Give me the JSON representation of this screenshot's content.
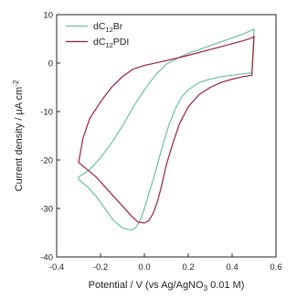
{
  "chart_data": {
    "type": "line",
    "xlabel": {
      "text": "Potential / V (vs Ag/AgNO",
      "sub": "3",
      "tail": " 0.01 M)"
    },
    "ylabel": {
      "text": "Current density / μA cm",
      "sup": "-2"
    },
    "xlim": [
      -0.4,
      0.6
    ],
    "ylim": [
      -40,
      10
    ],
    "x_ticks": [
      -0.4,
      -0.2,
      0.0,
      0.2,
      0.4,
      0.6
    ],
    "x_tick_labels": [
      "-0.4",
      "-0.2",
      "0.0",
      "0.2",
      "0.4",
      "0.6"
    ],
    "y_ticks": [
      -40,
      -30,
      -20,
      -10,
      0,
      10
    ],
    "y_tick_labels": [
      "-40",
      "-30",
      "-20",
      "-10",
      "0",
      "10"
    ],
    "grid": false,
    "legend_position": "top-left",
    "series": [
      {
        "name": {
          "pre": "dC",
          "sub": "12",
          "post": "Br"
        },
        "color": "#6dbfa6",
        "x": [
          -0.3,
          -0.26,
          -0.22,
          -0.18,
          -0.14,
          -0.1,
          -0.06,
          -0.04,
          -0.02,
          0.0,
          0.02,
          0.05,
          0.08,
          0.11,
          0.14,
          0.17,
          0.2,
          0.25,
          0.3,
          0.35,
          0.4,
          0.45,
          0.49,
          0.5,
          0.49,
          0.45,
          0.4,
          0.3,
          0.25,
          0.2,
          0.15,
          0.1,
          0.05,
          0.0,
          -0.05,
          -0.1,
          -0.15,
          -0.2,
          -0.25,
          -0.3,
          -0.3
        ],
        "y": [
          -24,
          -25.5,
          -27.5,
          -30,
          -32.5,
          -34,
          -34.5,
          -34,
          -32.5,
          -30,
          -27,
          -22.5,
          -17.5,
          -13,
          -9.5,
          -7,
          -5.5,
          -4,
          -3.3,
          -2.8,
          -2.5,
          -2.2,
          -2,
          7,
          6.8,
          6,
          5.2,
          3.6,
          2.8,
          2,
          1,
          -0.2,
          -2.5,
          -5.5,
          -9,
          -13,
          -16.5,
          -19.5,
          -22,
          -23.5,
          -24
        ]
      },
      {
        "name": {
          "pre": "dC",
          "sub": "12",
          "post": "PDI"
        },
        "color": "#9c1f3c",
        "x": [
          -0.3,
          -0.26,
          -0.22,
          -0.18,
          -0.14,
          -0.1,
          -0.06,
          -0.03,
          0.0,
          0.02,
          0.04,
          0.06,
          0.08,
          0.1,
          0.13,
          0.16,
          0.2,
          0.25,
          0.3,
          0.35,
          0.4,
          0.45,
          0.49,
          0.5,
          0.49,
          0.45,
          0.4,
          0.3,
          0.2,
          0.1,
          0.0,
          -0.05,
          -0.1,
          -0.15,
          -0.2,
          -0.25,
          -0.28,
          -0.3
        ],
        "y": [
          -20.5,
          -22,
          -23.5,
          -25.5,
          -27.5,
          -29.5,
          -31.5,
          -32.8,
          -33,
          -32.5,
          -31,
          -28.5,
          -25,
          -21,
          -16.5,
          -12.5,
          -9,
          -6.5,
          -5,
          -4,
          -3.3,
          -2.8,
          -2.5,
          5.5,
          5.2,
          4.6,
          4,
          2.8,
          1.6,
          0.5,
          -0.5,
          -1.2,
          -2.8,
          -5,
          -8,
          -11.5,
          -15.5,
          -20.5
        ]
      }
    ]
  }
}
